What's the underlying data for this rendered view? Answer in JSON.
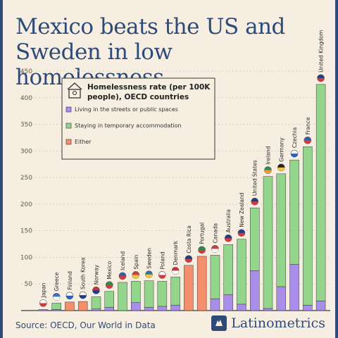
{
  "header": {
    "title": "Mexico beats the US and Sweden in low homelessness"
  },
  "footer": {
    "source": "Source: OECD, Our World in Data",
    "brand": "Latinometrics"
  },
  "colors": {
    "streets": "#a98de8",
    "temporary": "#93d58d",
    "either": "#f3906b",
    "axis_text": "#6b5c45",
    "grid": "#d9cfbf",
    "brand": "#2d4a79"
  },
  "chart_data": {
    "type": "bar",
    "stacked": true,
    "title": "Homelessness rate (per 100K people), OECD countries",
    "xlabel": "",
    "ylabel": "",
    "ylim": [
      0,
      450
    ],
    "yticks": [
      0,
      50,
      100,
      150,
      200,
      250,
      300,
      350,
      400,
      450
    ],
    "legend_position": "top-left",
    "categories": [
      "Japan",
      "Greece",
      "Finland",
      "South Korea",
      "Norway",
      "Mexico",
      "Iceland",
      "Spain",
      "Sweden",
      "Poland",
      "Denmark",
      "Costa Rica",
      "Portugal",
      "Canada",
      "Australia",
      "New Zealand",
      "United States",
      "Ireland",
      "Germany",
      "Czechia",
      "France",
      "United Kingdom"
    ],
    "series": [
      {
        "name": "Living in the streets or public spaces",
        "values": [
          2,
          2,
          0,
          0,
          3,
          6,
          0,
          15,
          6,
          8,
          10,
          0,
          0,
          22,
          30,
          12,
          75,
          4,
          45,
          87,
          10,
          18
        ]
      },
      {
        "name": "Staying in temporary accommodation",
        "values": [
          0,
          12,
          0,
          0,
          23,
          30,
          53,
          40,
          50,
          47,
          53,
          0,
          0,
          82,
          94,
          122,
          118,
          248,
          212,
          196,
          298,
          407
        ]
      },
      {
        "name": "Either",
        "values": [
          0,
          0,
          16,
          17,
          0,
          0,
          0,
          0,
          0,
          0,
          0,
          85,
          102,
          0,
          0,
          0,
          0,
          0,
          0,
          0,
          0,
          0
        ]
      }
    ],
    "flags": {
      "Japan": [
        "#ffffff",
        "#d23b3b"
      ],
      "Greece": [
        "#3b6fd0",
        "#ffffff"
      ],
      "Finland": [
        "#ffffff",
        "#2f5fb4"
      ],
      "South Korea": [
        "#ffffff",
        "#1b3f8a"
      ],
      "Norway": [
        "#c8303a",
        "#1b3f8a"
      ],
      "Mexico": [
        "#2e8b4f",
        "#d23b3b"
      ],
      "Iceland": [
        "#2f5fb4",
        "#d23b3b"
      ],
      "Spain": [
        "#d23b3b",
        "#f3c53a"
      ],
      "Sweden": [
        "#2f6fb4",
        "#f3c53a"
      ],
      "Poland": [
        "#ffffff",
        "#d23b3b"
      ],
      "Denmark": [
        "#c8303a",
        "#ffffff"
      ],
      "Costa Rica": [
        "#1b3f8a",
        "#d23b3b"
      ],
      "Portugal": [
        "#2e8b4f",
        "#d23b3b"
      ],
      "Canada": [
        "#d23b3b",
        "#ffffff"
      ],
      "Australia": [
        "#1b3f8a",
        "#d23b3b"
      ],
      "New Zealand": [
        "#1b3f8a",
        "#d23b3b"
      ],
      "United States": [
        "#1b3f8a",
        "#d23b3b"
      ],
      "Ireland": [
        "#2e8b4f",
        "#f39a3a"
      ],
      "Germany": [
        "#222222",
        "#f3c53a"
      ],
      "Czechia": [
        "#ffffff",
        "#2f5fb4"
      ],
      "France": [
        "#2f5fb4",
        "#d23b3b"
      ],
      "United Kingdom": [
        "#1b3f8a",
        "#d23b3b"
      ]
    }
  }
}
